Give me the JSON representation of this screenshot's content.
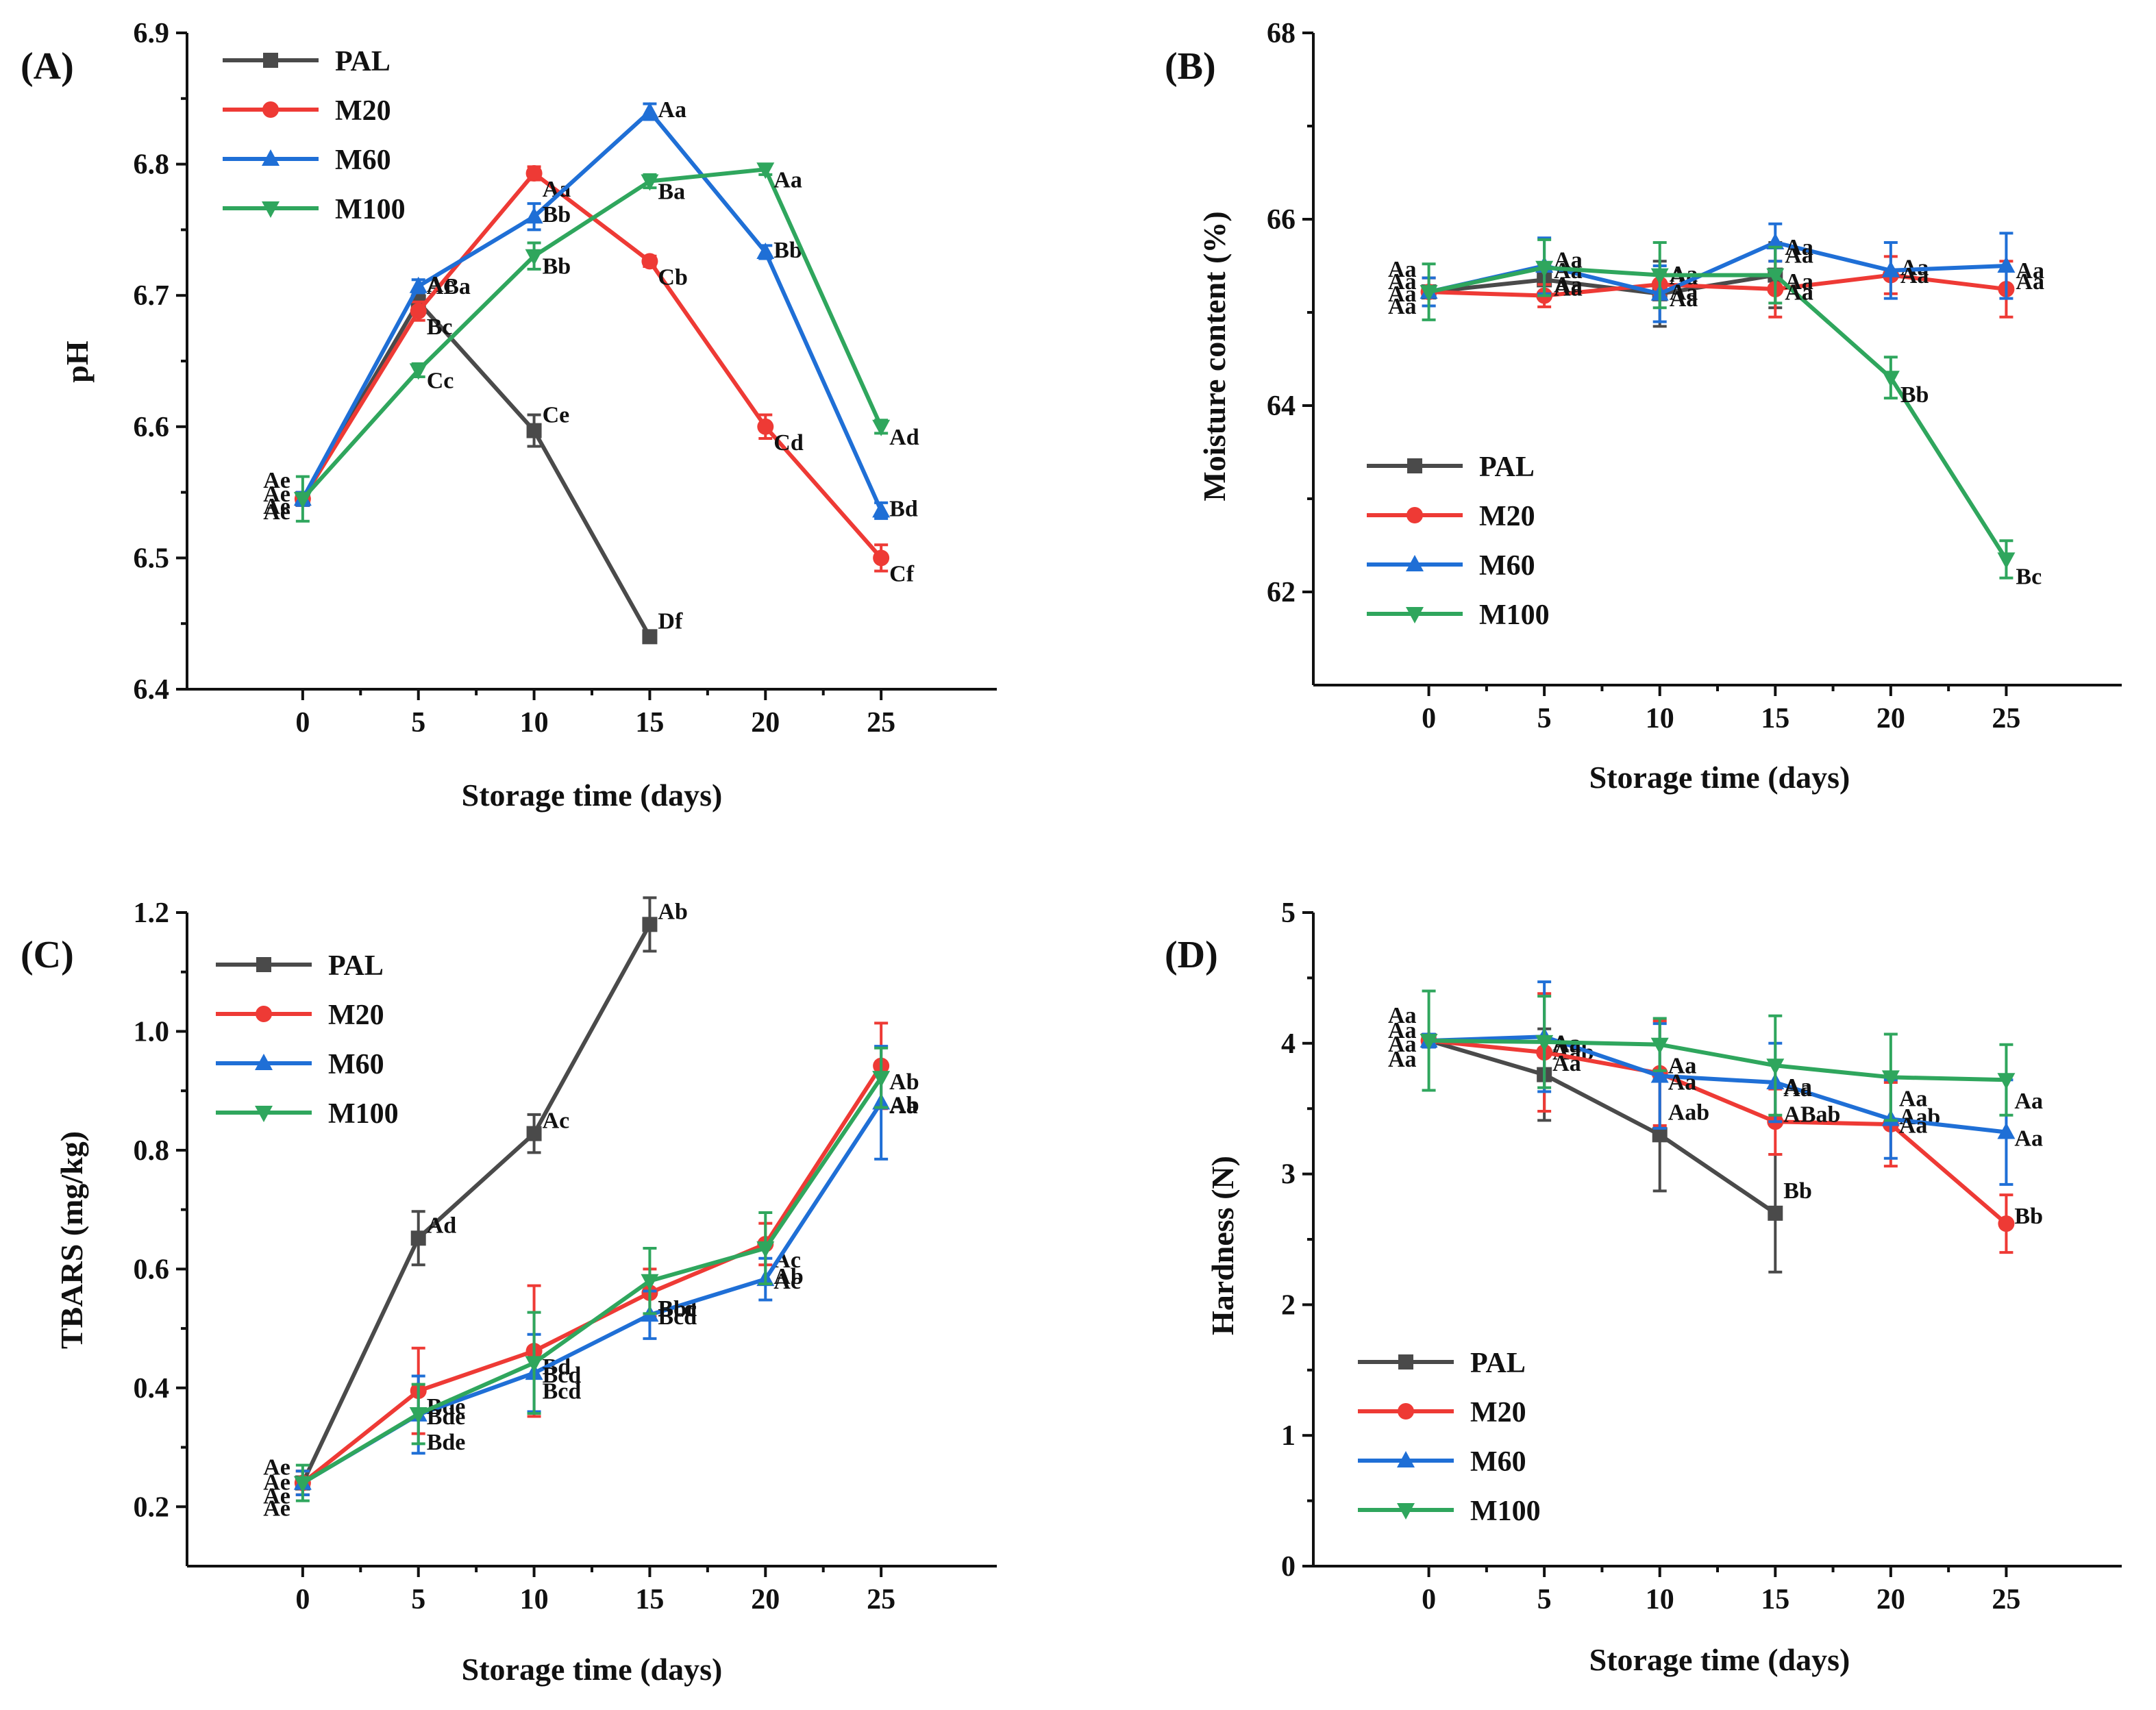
{
  "series_styles": [
    {
      "name": "PAL",
      "color": "#4a4a4a",
      "marker": "square"
    },
    {
      "name": "M20",
      "color": "#ee3a35",
      "marker": "circle"
    },
    {
      "name": "M60",
      "color": "#1f6fd6",
      "marker": "triangle-up"
    },
    {
      "name": "M100",
      "color": "#2fa65d",
      "marker": "triangle-down"
    }
  ],
  "chart_data": [
    {
      "panel": "(A)",
      "type": "line",
      "xlabel": "Storage time (days)",
      "ylabel": "pH",
      "x": [
        0,
        5,
        10,
        15,
        20,
        25
      ],
      "xticks": [
        "0",
        "5",
        "10",
        "15",
        "20",
        "25"
      ],
      "xlim": [
        -5,
        30
      ],
      "ylim": [
        6.4,
        6.9
      ],
      "yticks": [
        "6.4",
        "6.5",
        "6.6",
        "6.7",
        "6.8",
        "6.9"
      ],
      "legend_position": "top-left",
      "series": [
        {
          "name": "PAL",
          "values": [
            6.545,
            6.695,
            6.597,
            6.44,
            null,
            null
          ],
          "errors": [
            0.005,
            0.006,
            0.012,
            0.004,
            0,
            0
          ],
          "labels": [
            "Ae",
            "ABa",
            "Ce",
            "Df",
            "",
            ""
          ]
        },
        {
          "name": "M20",
          "values": [
            6.545,
            6.688,
            6.793,
            6.726,
            6.6,
            6.5
          ],
          "errors": [
            0.005,
            0.007,
            0.005,
            0.004,
            0.009,
            0.01
          ],
          "labels": [
            "Ae",
            "Bc",
            "Aa",
            "Cb",
            "Cd",
            "Cf"
          ]
        },
        {
          "name": "M60",
          "values": [
            6.545,
            6.707,
            6.76,
            6.84,
            6.733,
            6.536
          ],
          "errors": [
            0.005,
            0.005,
            0.01,
            0.006,
            0.005,
            0.006
          ],
          "labels": [
            "Ae",
            "Ac",
            "Bb",
            "Aa",
            "Bb",
            "Bd"
          ]
        },
        {
          "name": "M100",
          "values": [
            6.545,
            6.643,
            6.73,
            6.787,
            6.796,
            6.6
          ],
          "errors": [
            0.017,
            0.005,
            0.01,
            0.005,
            0.004,
            0.005
          ],
          "labels": [
            "Ae",
            "Cc",
            "Bb",
            "Ba",
            "Aa",
            "Ad"
          ]
        }
      ]
    },
    {
      "panel": "(B)",
      "type": "line",
      "xlabel": "Storage time (days)",
      "ylabel": "Moisture content (%)",
      "x": [
        0,
        5,
        10,
        15,
        20,
        25
      ],
      "xticks": [
        "0",
        "5",
        "10",
        "15",
        "20",
        "25"
      ],
      "xlim": [
        -5,
        30
      ],
      "ylim": [
        61,
        68
      ],
      "yticks": [
        "62",
        "64",
        "66",
        "68"
      ],
      "legend_position": "bottom-left",
      "series": [
        {
          "name": "PAL",
          "values": [
            65.22,
            65.35,
            65.2,
            65.4,
            null,
            null
          ],
          "errors": [
            0.15,
            0.15,
            0.35,
            0.35,
            0,
            0
          ],
          "labels": [
            "Aa",
            "Aa",
            "Aa",
            "Aa",
            "",
            ""
          ]
        },
        {
          "name": "M20",
          "values": [
            65.22,
            65.18,
            65.3,
            65.25,
            65.4,
            65.25
          ],
          "errors": [
            0.15,
            0.12,
            0.12,
            0.3,
            0.2,
            0.3
          ],
          "labels": [
            "Aa",
            "Aa",
            "Aa",
            "Aa",
            "Aa",
            "Aa"
          ]
        },
        {
          "name": "M60",
          "values": [
            65.22,
            65.5,
            65.2,
            65.75,
            65.45,
            65.5
          ],
          "errors": [
            0.15,
            0.3,
            0.3,
            0.2,
            0.3,
            0.35
          ],
          "labels": [
            "Aa",
            "Aa",
            "Aa",
            "Aa",
            "Aa",
            "Aa"
          ]
        },
        {
          "name": "M100",
          "values": [
            65.22,
            65.48,
            65.4,
            65.4,
            64.3,
            62.35
          ],
          "errors": [
            0.3,
            0.3,
            0.35,
            0.3,
            0.22,
            0.2
          ],
          "labels": [
            "Aa",
            "Aa",
            "Aa",
            "Aa",
            "Bb",
            "Bc"
          ]
        }
      ]
    },
    {
      "panel": "(C)",
      "type": "line",
      "xlabel": "Storage time (days)",
      "ylabel": "TBARS (mg/kg)",
      "x": [
        0,
        5,
        10,
        15,
        20,
        25
      ],
      "xticks": [
        "0",
        "5",
        "10",
        "15",
        "20",
        "25"
      ],
      "xlim": [
        -5,
        30
      ],
      "ylim": [
        0.1,
        1.2
      ],
      "yticks": [
        "0.2",
        "0.4",
        "0.6",
        "0.8",
        "1.0",
        "1.2"
      ],
      "legend_position": "top-left",
      "series": [
        {
          "name": "PAL",
          "values": [
            0.24,
            0.652,
            0.828,
            1.18,
            null,
            null
          ],
          "errors": [
            0.02,
            0.045,
            0.032,
            0.045,
            0,
            0
          ],
          "labels": [
            "Ae",
            "Ad",
            "Ac",
            "Ab",
            "",
            ""
          ]
        },
        {
          "name": "M20",
          "values": [
            0.24,
            0.395,
            0.462,
            0.56,
            0.642,
            0.942
          ],
          "errors": [
            0.02,
            0.072,
            0.11,
            0.04,
            0.035,
            0.072
          ],
          "labels": [
            "Ae",
            "Bde",
            "Bd",
            "Bcd",
            "Ac",
            "Ab"
          ]
        },
        {
          "name": "M60",
          "values": [
            0.24,
            0.355,
            0.425,
            0.523,
            0.583,
            0.88
          ],
          "errors": [
            0.02,
            0.065,
            0.065,
            0.04,
            0.035,
            0.095
          ],
          "labels": [
            "Ae",
            "Bde",
            "Bcd",
            "Bcd",
            "Ac",
            "Ab"
          ]
        },
        {
          "name": "M100",
          "values": [
            0.24,
            0.356,
            0.442,
            0.58,
            0.635,
            0.922
          ],
          "errors": [
            0.03,
            0.05,
            0.085,
            0.055,
            0.06,
            0.05
          ],
          "labels": [
            "Ae",
            "Bde",
            "Bcd",
            "Bbc",
            "Ab",
            "Aa"
          ]
        }
      ]
    },
    {
      "panel": "(D)",
      "type": "line",
      "xlabel": "Storage time (days)",
      "ylabel": "Hardness (N)",
      "x": [
        0,
        5,
        10,
        15,
        20,
        25
      ],
      "xticks": [
        "0",
        "5",
        "10",
        "15",
        "20",
        "25"
      ],
      "xlim": [
        -5,
        30
      ],
      "ylim": [
        0,
        5
      ],
      "yticks": [
        "0",
        "1",
        "2",
        "3",
        "4",
        "5"
      ],
      "legend_position": "bottom-left",
      "series": [
        {
          "name": "PAL",
          "values": [
            4.02,
            3.76,
            3.3,
            2.7,
            null,
            null
          ],
          "errors": [
            0.05,
            0.35,
            0.43,
            0.45,
            0,
            0
          ],
          "labels": [
            "Aa",
            "Aab",
            "Aab",
            "Bb",
            "",
            ""
          ]
        },
        {
          "name": "M20",
          "values": [
            4.02,
            3.93,
            3.77,
            3.4,
            3.38,
            2.62
          ],
          "errors": [
            0.05,
            0.45,
            0.4,
            0.25,
            0.32,
            0.22
          ],
          "labels": [
            "Aa",
            "Aa",
            "Aa",
            "ABab",
            "Aab",
            "Bb"
          ]
        },
        {
          "name": "M60",
          "values": [
            4.02,
            4.05,
            3.75,
            3.7,
            3.42,
            3.32
          ],
          "errors": [
            0.05,
            0.42,
            0.4,
            0.3,
            0.3,
            0.4
          ],
          "labels": [
            "Aa",
            "Aa",
            "Aa",
            "Aa",
            "Aa",
            "Aa"
          ]
        },
        {
          "name": "M100",
          "values": [
            4.02,
            4.01,
            3.99,
            3.83,
            3.74,
            3.72
          ],
          "errors": [
            0.38,
            0.35,
            0.2,
            0.38,
            0.33,
            0.27
          ],
          "labels": [
            "Aa",
            "Aa",
            "Aa",
            "Aa",
            "Aa",
            "Aa"
          ]
        }
      ]
    }
  ]
}
